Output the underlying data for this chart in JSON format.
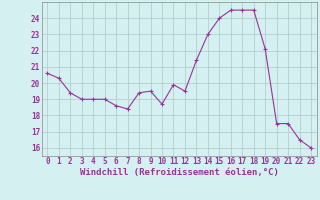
{
  "x": [
    0,
    1,
    2,
    3,
    4,
    5,
    6,
    7,
    8,
    9,
    10,
    11,
    12,
    13,
    14,
    15,
    16,
    17,
    18,
    19,
    20,
    21,
    22,
    23
  ],
  "y": [
    20.6,
    20.3,
    19.4,
    19.0,
    19.0,
    19.0,
    18.6,
    18.4,
    19.4,
    19.5,
    18.7,
    19.9,
    19.5,
    21.4,
    23.0,
    24.0,
    24.5,
    24.5,
    24.5,
    22.1,
    17.5,
    17.5,
    16.5,
    16.0
  ],
  "line_color": "#993399",
  "marker": "+",
  "marker_size": 3,
  "bg_color": "#d4f0f0",
  "grid_color": "#b0c8c8",
  "xlabel": "Windchill (Refroidissement éolien,°C)",
  "xlabel_color": "#993399",
  "ylabel_ticks": [
    16,
    17,
    18,
    19,
    20,
    21,
    22,
    23,
    24
  ],
  "xtick_labels": [
    "0",
    "1",
    "2",
    "3",
    "4",
    "5",
    "6",
    "7",
    "8",
    "9",
    "10",
    "11",
    "12",
    "13",
    "14",
    "15",
    "16",
    "17",
    "18",
    "19",
    "20",
    "21",
    "22",
    "23"
  ],
  "ylim": [
    15.5,
    25.0
  ],
  "xlim": [
    -0.5,
    23.5
  ],
  "tick_color": "#993399",
  "tick_fontsize": 5.5,
  "xlabel_fontsize": 6.5,
  "linewidth": 0.8
}
